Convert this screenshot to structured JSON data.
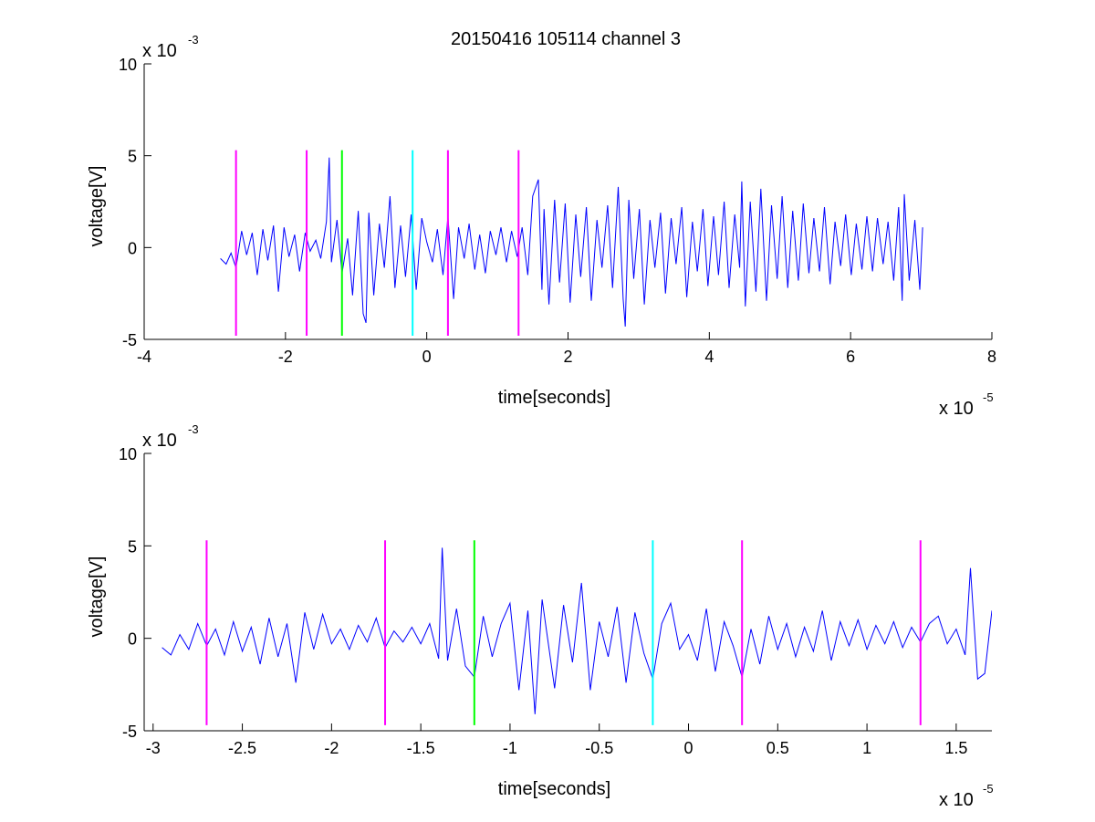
{
  "figure": {
    "title": "20150416 105114 channel 3"
  },
  "colors": {
    "signal": "#0000ff",
    "marker_magenta": "#ff00ff",
    "marker_green": "#00ff00",
    "marker_cyan": "#00ffff",
    "axes": "#000000",
    "background": "#ffffff"
  },
  "chart_data": [
    {
      "type": "line",
      "title": "20150416 105114 channel 3",
      "xlabel": "time[seconds]",
      "ylabel": "voltage[V]",
      "x_multiplier": "x 10",
      "x_multiplier_exp": "-5",
      "y_multiplier": "x 10",
      "y_multiplier_exp": "-3",
      "xlim": [
        -4,
        8
      ],
      "ylim": [
        -5,
        10
      ],
      "grid": false,
      "xticks": [
        -4,
        -2,
        0,
        2,
        4,
        6,
        8
      ],
      "xtick_labels": [
        "-4",
        "-2",
        "0",
        "2",
        "4",
        "6",
        "8"
      ],
      "yticks": [
        -5,
        0,
        5,
        10
      ],
      "ytick_labels": [
        "-5",
        "0",
        "5",
        "10"
      ],
      "series": [
        {
          "color": "#0000ff",
          "x": [
            -2.92,
            -2.84,
            -2.77,
            -2.7,
            -2.62,
            -2.55,
            -2.47,
            -2.4,
            -2.32,
            -2.25,
            -2.17,
            -2.1,
            -2.02,
            -1.95,
            -1.87,
            -1.8,
            -1.72,
            -1.65,
            -1.57,
            -1.5,
            -1.42,
            -1.38,
            -1.35,
            -1.27,
            -1.2,
            -1.12,
            -1.05,
            -0.97,
            -0.9,
            -0.86,
            -0.82,
            -0.75,
            -0.67,
            -0.6,
            -0.52,
            -0.45,
            -0.37,
            -0.3,
            -0.22,
            -0.15,
            -0.07,
            0.0,
            0.08,
            0.15,
            0.23,
            0.3,
            0.38,
            0.45,
            0.53,
            0.6,
            0.68,
            0.75,
            0.83,
            0.9,
            0.98,
            1.05,
            1.13,
            1.2,
            1.28,
            1.35,
            1.43,
            1.5,
            1.58,
            1.63,
            1.66,
            1.73,
            1.81,
            1.88,
            1.96,
            2.03,
            2.11,
            2.18,
            2.26,
            2.33,
            2.41,
            2.48,
            2.56,
            2.63,
            2.71,
            2.78,
            2.81,
            2.86,
            2.93,
            3.01,
            3.08,
            3.16,
            3.23,
            3.31,
            3.38,
            3.46,
            3.53,
            3.61,
            3.68,
            3.76,
            3.83,
            3.91,
            3.98,
            4.06,
            4.13,
            4.21,
            4.28,
            4.36,
            4.43,
            4.46,
            4.51,
            4.58,
            4.66,
            4.73,
            4.81,
            4.88,
            4.96,
            5.03,
            5.11,
            5.18,
            5.26,
            5.33,
            5.41,
            5.48,
            5.56,
            5.63,
            5.71,
            5.78,
            5.86,
            5.93,
            6.01,
            6.08,
            6.16,
            6.23,
            6.31,
            6.38,
            6.46,
            6.53,
            6.61,
            6.68,
            6.73,
            6.76,
            6.83,
            6.91,
            6.98,
            7.02
          ],
          "y": [
            -0.6,
            -0.9,
            -0.3,
            -1.1,
            0.9,
            -0.4,
            0.8,
            -1.5,
            1.0,
            -0.7,
            1.2,
            -2.4,
            1.1,
            -0.5,
            0.7,
            -1.3,
            0.8,
            -0.2,
            0.4,
            -0.6,
            1.4,
            4.9,
            -0.8,
            1.5,
            -1.4,
            0.5,
            -2.6,
            2.0,
            -3.6,
            -4.1,
            1.9,
            -2.6,
            1.3,
            -1.1,
            2.8,
            -2.2,
            1.2,
            -1.6,
            1.8,
            -2.3,
            1.6,
            0.3,
            -0.8,
            1.0,
            -1.5,
            1.7,
            -2.8,
            1.1,
            -0.6,
            1.3,
            -1.2,
            0.7,
            -1.4,
            0.9,
            -0.4,
            1.1,
            -0.8,
            0.9,
            -0.5,
            1.1,
            -1.5,
            2.8,
            3.7,
            -2.3,
            2.1,
            -3.1,
            2.6,
            -1.9,
            2.4,
            -3.0,
            1.8,
            -1.6,
            2.2,
            -2.9,
            1.5,
            -1.1,
            2.3,
            -2.2,
            3.3,
            -2.8,
            -4.3,
            2.6,
            -1.7,
            2.1,
            -3.1,
            1.5,
            -1.1,
            1.9,
            -2.5,
            1.6,
            -0.9,
            2.2,
            -2.7,
            1.4,
            -1.3,
            2.1,
            -2.1,
            1.7,
            -1.5,
            2.5,
            -2.2,
            1.8,
            -1.1,
            3.6,
            -3.2,
            2.5,
            -2.4,
            3.2,
            -2.9,
            2.3,
            -1.7,
            2.8,
            -2.2,
            2.0,
            -1.8,
            2.4,
            -1.4,
            1.6,
            -1.3,
            2.2,
            -2.0,
            1.4,
            -1.0,
            1.8,
            -1.5,
            1.3,
            -1.2,
            1.7,
            -1.3,
            1.6,
            -0.9,
            1.4,
            -1.8,
            2.2,
            -2.9,
            2.9,
            -1.8,
            1.5,
            -2.3,
            1.1
          ]
        }
      ],
      "markers": [
        {
          "x": -2.7,
          "color": "#ff00ff",
          "y_range": [
            -4.8,
            5.3
          ]
        },
        {
          "x": -1.7,
          "color": "#ff00ff",
          "y_range": [
            -4.8,
            5.3
          ]
        },
        {
          "x": -1.2,
          "color": "#00ff00",
          "y_range": [
            -4.8,
            5.3
          ]
        },
        {
          "x": -0.2,
          "color": "#00ffff",
          "y_range": [
            -4.8,
            5.3
          ]
        },
        {
          "x": 0.3,
          "color": "#ff00ff",
          "y_range": [
            -4.8,
            5.3
          ]
        },
        {
          "x": 1.3,
          "color": "#ff00ff",
          "y_range": [
            -4.8,
            5.3
          ]
        }
      ]
    },
    {
      "type": "line",
      "title": "",
      "xlabel": "time[seconds]",
      "ylabel": "voltage[V]",
      "x_multiplier": "x 10",
      "x_multiplier_exp": "-5",
      "y_multiplier": "x 10",
      "y_multiplier_exp": "-3",
      "xlim": [
        -3.05,
        1.7
      ],
      "ylim": [
        -5,
        10
      ],
      "grid": false,
      "xticks": [
        -3,
        -2.5,
        -2,
        -1.5,
        -1,
        -0.5,
        0,
        0.5,
        1,
        1.5
      ],
      "xtick_labels": [
        "-3",
        "-2.5",
        "-2",
        "-1.5",
        "-1",
        "-0.5",
        "0",
        "0.5",
        "1",
        "1.5"
      ],
      "yticks": [
        -5,
        0,
        5,
        10
      ],
      "ytick_labels": [
        "-5",
        "0",
        "5",
        "10"
      ],
      "series": [
        {
          "color": "#0000ff",
          "x": [
            -2.95,
            -2.9,
            -2.85,
            -2.8,
            -2.75,
            -2.7,
            -2.65,
            -2.6,
            -2.55,
            -2.5,
            -2.45,
            -2.4,
            -2.35,
            -2.3,
            -2.25,
            -2.2,
            -2.15,
            -2.1,
            -2.05,
            -2.0,
            -1.95,
            -1.9,
            -1.85,
            -1.8,
            -1.75,
            -1.7,
            -1.65,
            -1.6,
            -1.55,
            -1.5,
            -1.45,
            -1.4,
            -1.38,
            -1.35,
            -1.3,
            -1.25,
            -1.2,
            -1.15,
            -1.1,
            -1.05,
            -1.0,
            -0.95,
            -0.9,
            -0.86,
            -0.82,
            -0.75,
            -0.7,
            -0.65,
            -0.6,
            -0.55,
            -0.5,
            -0.45,
            -0.4,
            -0.35,
            -0.3,
            -0.25,
            -0.2,
            -0.15,
            -0.1,
            -0.05,
            0.0,
            0.05,
            0.1,
            0.15,
            0.2,
            0.25,
            0.3,
            0.35,
            0.4,
            0.45,
            0.5,
            0.55,
            0.6,
            0.65,
            0.7,
            0.75,
            0.8,
            0.85,
            0.9,
            0.95,
            1.0,
            1.05,
            1.1,
            1.15,
            1.2,
            1.25,
            1.3,
            1.35,
            1.4,
            1.45,
            1.5,
            1.55,
            1.58,
            1.62,
            1.66,
            1.7
          ],
          "y": [
            -0.5,
            -0.9,
            0.2,
            -0.6,
            0.8,
            -0.4,
            0.5,
            -0.9,
            0.9,
            -0.7,
            0.6,
            -1.4,
            1.1,
            -1.0,
            0.8,
            -2.4,
            1.4,
            -0.6,
            1.3,
            -0.3,
            0.5,
            -0.6,
            0.7,
            -0.2,
            1.1,
            -0.5,
            0.4,
            -0.2,
            0.6,
            -0.3,
            0.8,
            -1.1,
            4.9,
            -1.2,
            1.6,
            -1.5,
            -2.1,
            1.2,
            -1.0,
            0.8,
            1.9,
            -2.8,
            1.5,
            -4.1,
            2.1,
            -2.7,
            1.8,
            -1.3,
            3.0,
            -2.8,
            0.9,
            -1.0,
            1.7,
            -2.4,
            1.4,
            -0.8,
            -2.2,
            0.8,
            1.9,
            -0.6,
            0.2,
            -1.2,
            1.6,
            -1.8,
            0.9,
            -0.4,
            -2.1,
            0.5,
            -1.4,
            1.2,
            -0.6,
            0.8,
            -1.0,
            0.6,
            -0.7,
            1.5,
            -1.2,
            0.9,
            -0.4,
            1.0,
            -0.6,
            0.7,
            -0.3,
            0.9,
            -0.5,
            0.6,
            -0.2,
            0.8,
            1.2,
            -0.3,
            0.5,
            -0.9,
            3.8,
            -2.2,
            -1.9,
            1.5
          ],
          "notes": ""
        }
      ],
      "markers": [
        {
          "x": -2.7,
          "color": "#ff00ff",
          "y_range": [
            -4.7,
            5.3
          ]
        },
        {
          "x": -1.7,
          "color": "#ff00ff",
          "y_range": [
            -4.7,
            5.3
          ]
        },
        {
          "x": -1.2,
          "color": "#00ff00",
          "y_range": [
            -4.7,
            5.3
          ]
        },
        {
          "x": -0.2,
          "color": "#00ffff",
          "y_range": [
            -4.7,
            5.3
          ]
        },
        {
          "x": 0.3,
          "color": "#ff00ff",
          "y_range": [
            -4.7,
            5.3
          ]
        },
        {
          "x": 1.3,
          "color": "#ff00ff",
          "y_range": [
            -4.7,
            5.3
          ]
        }
      ]
    }
  ]
}
